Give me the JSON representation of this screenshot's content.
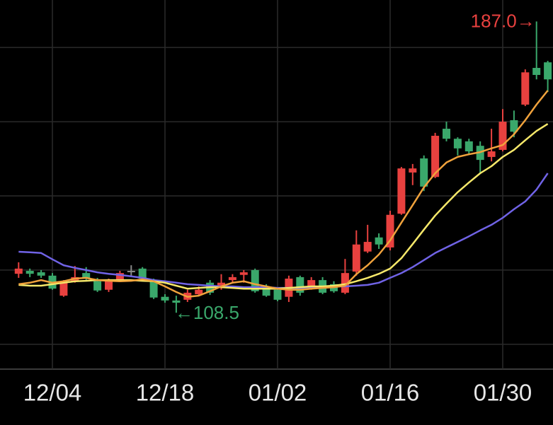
{
  "chart_data": {
    "type": "candlestick",
    "categories": [
      null,
      null,
      null,
      "12/04",
      null,
      null,
      null,
      null,
      null,
      null,
      null,
      null,
      null,
      "12/18",
      null,
      null,
      null,
      null,
      null,
      null,
      null,
      null,
      null,
      "01/02",
      null,
      null,
      null,
      null,
      null,
      null,
      null,
      null,
      null,
      "01/16",
      null,
      null,
      null,
      null,
      null,
      null,
      null,
      null,
      null,
      "01/30",
      null,
      null,
      null,
      null
    ],
    "open": [
      119,
      119.8,
      119.4,
      118.5,
      113.1,
      117,
      119.2,
      117,
      114.7,
      117.3,
      119.8,
      120.4,
      117,
      112.8,
      111.8,
      112,
      113.5,
      116.6,
      115.6,
      117.3,
      118.7,
      120,
      115.4,
      114.7,
      112.8,
      118.1,
      115.4,
      117.3,
      116.2,
      113.9,
      119.6,
      125,
      128.8,
      126.1,
      135.2,
      146.3,
      150.1,
      145.1,
      158.1,
      155.4,
      154.7,
      153.5,
      150.5,
      152.4,
      160.4,
      164.6,
      174.5,
      176
    ],
    "high": [
      122.1,
      120.4,
      120,
      119.2,
      117.3,
      121.1,
      120.8,
      117.9,
      117.7,
      119.8,
      121.3,
      120.8,
      117.7,
      113.5,
      113.1,
      114.7,
      115.6,
      117.3,
      118.9,
      118.9,
      120,
      120.4,
      116.2,
      115.4,
      118.5,
      118.5,
      118.1,
      118.1,
      117,
      123,
      130.7,
      132.2,
      129.9,
      136,
      147.8,
      148.6,
      150.9,
      157,
      160,
      155.8,
      155.4,
      154.7,
      158.1,
      163.4,
      163,
      174.1,
      187.0,
      176.4
    ],
    "low": [
      117.9,
      118.1,
      117.9,
      114.7,
      112.8,
      116.6,
      117,
      114.1,
      114.1,
      117,
      118.1,
      117.3,
      112.2,
      111.2,
      108.5,
      111.4,
      113.1,
      113.3,
      114.7,
      116.6,
      116.6,
      113.9,
      112.8,
      111.6,
      111.4,
      113.1,
      114.7,
      113.5,
      113.9,
      113.5,
      118.5,
      124.6,
      125.7,
      125.3,
      134.9,
      142.9,
      141.3,
      144.8,
      154.7,
      150.9,
      151.2,
      145.9,
      149.3,
      152,
      155.8,
      164.2,
      171.4,
      168
    ],
    "close": [
      120.4,
      119,
      118.5,
      115,
      116.6,
      118.1,
      117.7,
      114.5,
      117,
      119.2,
      119.8,
      117.7,
      112.6,
      111.8,
      111.2,
      113.9,
      114.7,
      113.9,
      116.6,
      118.1,
      119.4,
      114.3,
      113.1,
      112,
      117.7,
      113.9,
      117.3,
      113.9,
      114.3,
      119.2,
      126.9,
      127.6,
      126.9,
      134.9,
      147.4,
      147.4,
      142.5,
      156.2,
      155.4,
      152.8,
      152,
      149.7,
      152,
      160,
      157.3,
      173.3,
      172.6,
      171.4
    ],
    "up_color": "#e8413f",
    "down_color": "#3aa86b",
    "flat_color": "#8a8a8a",
    "series": [
      {
        "color": "#7063e6",
        "values": [
          124.95,
          124.8,
          124.6,
          122.9,
          121.3,
          120.6,
          120,
          119.4,
          119,
          118.7,
          118.3,
          117.9,
          117.3,
          117,
          116.6,
          116.2,
          116,
          115.8,
          115.6,
          115.6,
          115.4,
          115.4,
          115.4,
          115.2,
          115.2,
          115.2,
          115.4,
          115.4,
          115.6,
          115.6,
          115.8,
          116,
          116.6,
          117.9,
          119.2,
          120.8,
          122.7,
          124.6,
          126.1,
          127.6,
          129.1,
          130.7,
          132.2,
          134.1,
          136.4,
          138.5,
          141.7,
          146.1
        ]
      },
      {
        "color": "#f6e86a",
        "values": [
          116,
          115.8,
          115.8,
          116.2,
          116.6,
          117,
          117.1,
          117.3,
          117.3,
          117.3,
          117.3,
          117.1,
          117,
          116.6,
          115.8,
          115,
          115.2,
          115.4,
          115.4,
          115.2,
          115,
          115,
          115,
          115,
          115.2,
          115.4,
          115.6,
          115.6,
          115.8,
          116.2,
          117,
          117.9,
          119,
          120.4,
          123.2,
          127,
          130.9,
          134.7,
          137.9,
          141,
          143.6,
          146.1,
          148,
          150.5,
          152.4,
          155,
          157.5,
          159.4
        ]
      },
      {
        "color": "#f0a23c",
        "values": [
          116.2,
          116.6,
          117.3,
          116.6,
          117,
          117.7,
          117.9,
          117.3,
          117.1,
          117,
          117.1,
          117.5,
          117,
          115.6,
          114.1,
          112.8,
          113.1,
          114.3,
          115.6,
          116.6,
          117,
          116.2,
          115.6,
          115,
          114.7,
          114.7,
          115,
          115.2,
          115.4,
          115.8,
          118.9,
          121.3,
          124.2,
          128,
          132.8,
          137.5,
          142.3,
          146.1,
          149,
          150.5,
          151.2,
          151.8,
          152.8,
          153.7,
          156.6,
          160.4,
          164.6,
          168.4
        ]
      }
    ],
    "ylim": [
      93.3,
      192.8
    ],
    "yticks": [
      100,
      120,
      140,
      160,
      180
    ],
    "grid": true,
    "annotations": [
      {
        "text": "187.0→",
        "color": "#e8413f",
        "at": "max"
      },
      {
        "text": "←108.5",
        "color": "#3aa86b",
        "at": "min"
      }
    ]
  }
}
